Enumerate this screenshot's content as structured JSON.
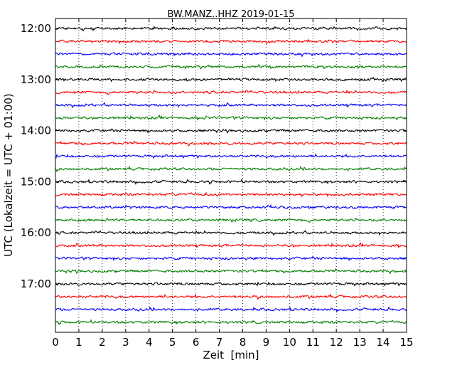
{
  "chart_data": {
    "type": "line",
    "title": "BW.MANZ..HHZ 2019-01-15",
    "xlabel": "Zeit  [min]",
    "ylabel": "UTC (Lokalzeit = UTC + 01:00)",
    "xlim": [
      0,
      15
    ],
    "x_ticks": [
      "0",
      "1",
      "2",
      "3",
      "4",
      "5",
      "6",
      "7",
      "8",
      "9",
      "10",
      "11",
      "12",
      "13",
      "14",
      "15"
    ],
    "y_ticks": [
      "12:00",
      "13:00",
      "14:00",
      "15:00",
      "16:00",
      "17:00"
    ],
    "grid": "vertical dotted at each minute",
    "trace_interval_min": 15,
    "trace_colors": [
      "#000000",
      "#ff0000",
      "#0000ff",
      "#008000"
    ],
    "traces": [
      {
        "start": "12:00"
      },
      {
        "start": "12:15"
      },
      {
        "start": "12:30"
      },
      {
        "start": "12:45"
      },
      {
        "start": "13:00"
      },
      {
        "start": "13:15"
      },
      {
        "start": "13:30"
      },
      {
        "start": "13:45"
      },
      {
        "start": "14:00"
      },
      {
        "start": "14:15"
      },
      {
        "start": "14:30"
      },
      {
        "start": "14:45"
      },
      {
        "start": "15:00"
      },
      {
        "start": "15:15"
      },
      {
        "start": "15:30"
      },
      {
        "start": "15:45"
      },
      {
        "start": "16:00"
      },
      {
        "start": "16:15"
      },
      {
        "start": "16:30"
      },
      {
        "start": "16:45"
      },
      {
        "start": "17:00"
      },
      {
        "start": "17:15"
      },
      {
        "start": "17:30"
      },
      {
        "start": "17:45"
      }
    ]
  }
}
